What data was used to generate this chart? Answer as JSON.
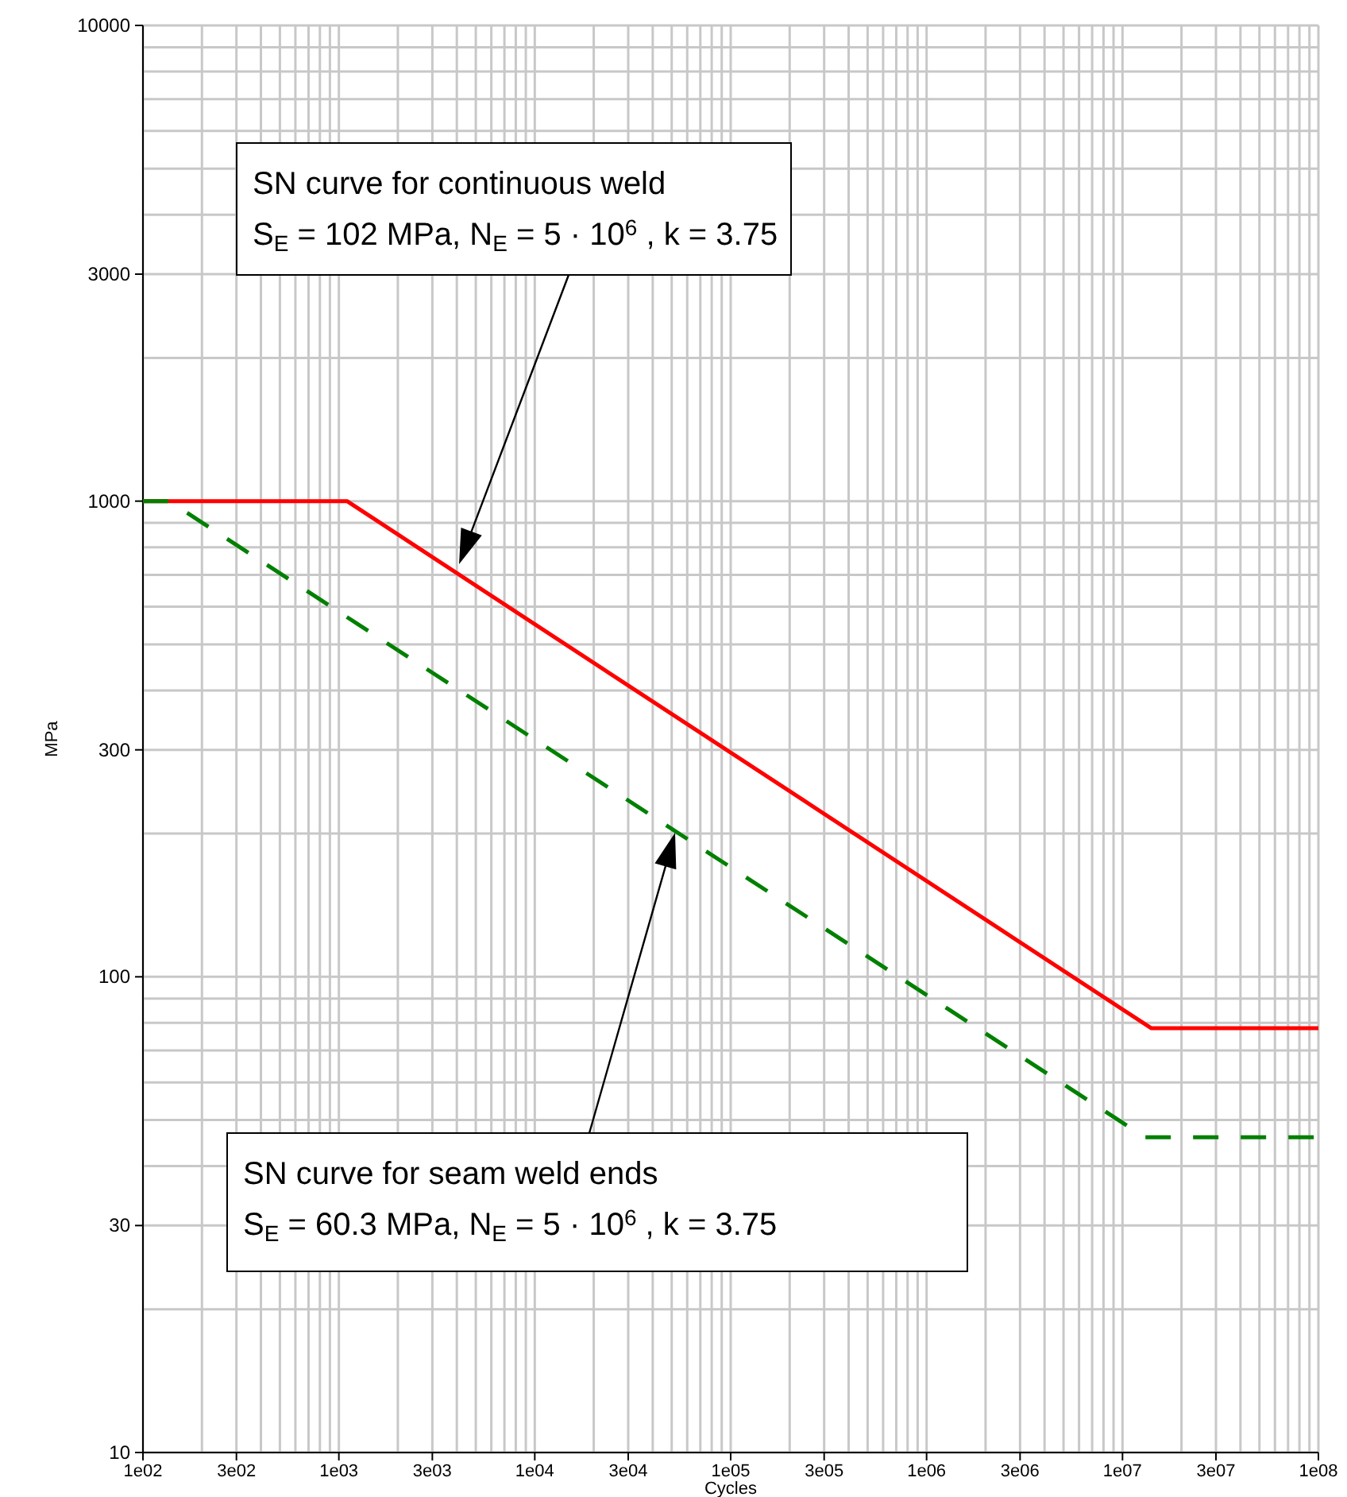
{
  "chart_data": {
    "type": "line",
    "xlabel": "Cycles",
    "ylabel": "MPa",
    "log": "xy",
    "grid": true,
    "marker": "none",
    "xlim": [
      100,
      100000000
    ],
    "ylim": [
      10,
      10000
    ],
    "xticks": [
      {
        "value": 100,
        "label": "1e02"
      },
      {
        "value": 300,
        "label": "3e02"
      },
      {
        "value": 1000,
        "label": "1e03"
      },
      {
        "value": 3000,
        "label": "3e03"
      },
      {
        "value": 10000,
        "label": "1e04"
      },
      {
        "value": 30000,
        "label": "3e04"
      },
      {
        "value": 100000,
        "label": "1e05"
      },
      {
        "value": 300000,
        "label": "3e05"
      },
      {
        "value": 1000000,
        "label": "1e06"
      },
      {
        "value": 3000000,
        "label": "3e06"
      },
      {
        "value": 10000000,
        "label": "1e07"
      },
      {
        "value": 30000000,
        "label": "3e07"
      },
      {
        "value": 100000000,
        "label": "1e08"
      }
    ],
    "yticks": [
      10,
      30,
      100,
      300,
      1000,
      3000,
      10000
    ],
    "series": [
      {
        "color": "#ff0000",
        "line_style": "solid",
        "x": [
          100,
          1100,
          14000000,
          100000000
        ],
        "values": [
          1000,
          1000,
          78,
          78
        ]
      },
      {
        "color": "#008000",
        "line_style": "dashed",
        "x": [
          100,
          136,
          13000000,
          100000000
        ],
        "values": [
          1000,
          1000,
          46,
          46
        ]
      }
    ],
    "annotations": [
      "SN curve for continuous weld\nS$_{E}$ = 102 MPa, N$_{E}$ =  5 · 10$^{6}$ , k = 3.75",
      "SN curve for seam weld ends\nS$_{E}$ = 60.3 MPa, N$_{E}$ =  5 · 10$^{6}$ , k = 3.75"
    ]
  }
}
